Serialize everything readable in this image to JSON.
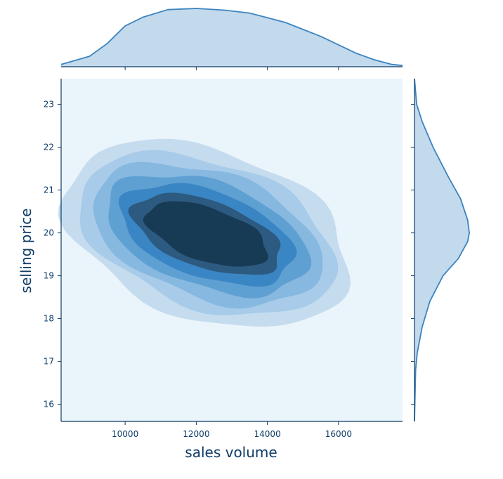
{
  "chart_data": {
    "type": "kde-jointplot",
    "title": "",
    "xlabel": "sales volume",
    "ylabel": "selling price",
    "xlim": [
      8200,
      17800
    ],
    "ylim": [
      15.6,
      23.6
    ],
    "xticks": [
      10000,
      12000,
      14000,
      16000
    ],
    "yticks": [
      16,
      17,
      18,
      19,
      20,
      21,
      22,
      23
    ],
    "density_center": {
      "x": 12300,
      "y": 20.0
    },
    "density_levels": 7,
    "x_marginal": {
      "x": [
        8200,
        9000,
        9500,
        10000,
        10500,
        11200,
        12000,
        12800,
        13500,
        14500,
        15500,
        16500,
        17000,
        17500,
        17800
      ],
      "density": [
        0.04,
        0.18,
        0.4,
        0.7,
        0.85,
        0.98,
        1.0,
        0.97,
        0.92,
        0.76,
        0.52,
        0.23,
        0.12,
        0.04,
        0.02
      ]
    },
    "y_marginal": {
      "y": [
        15.6,
        16.8,
        17.2,
        17.8,
        18.4,
        19.0,
        19.4,
        19.8,
        20.0,
        20.3,
        20.8,
        21.3,
        22.0,
        22.6,
        23.0,
        23.6
      ],
      "density": [
        0.0,
        0.02,
        0.05,
        0.14,
        0.28,
        0.52,
        0.8,
        0.97,
        1.0,
        0.97,
        0.84,
        0.62,
        0.34,
        0.14,
        0.04,
        0.0
      ]
    },
    "colors": {
      "background": "#eaf4fb",
      "levels": [
        "#c5dcef",
        "#a7cbe9",
        "#86b8e0",
        "#5fa0d3",
        "#3a86c4",
        "#2d5a80",
        "#173a55"
      ],
      "marginal_fill": "#c3d9ec",
      "marginal_line": "#3b84c0",
      "axis": "#0d3b66"
    }
  }
}
